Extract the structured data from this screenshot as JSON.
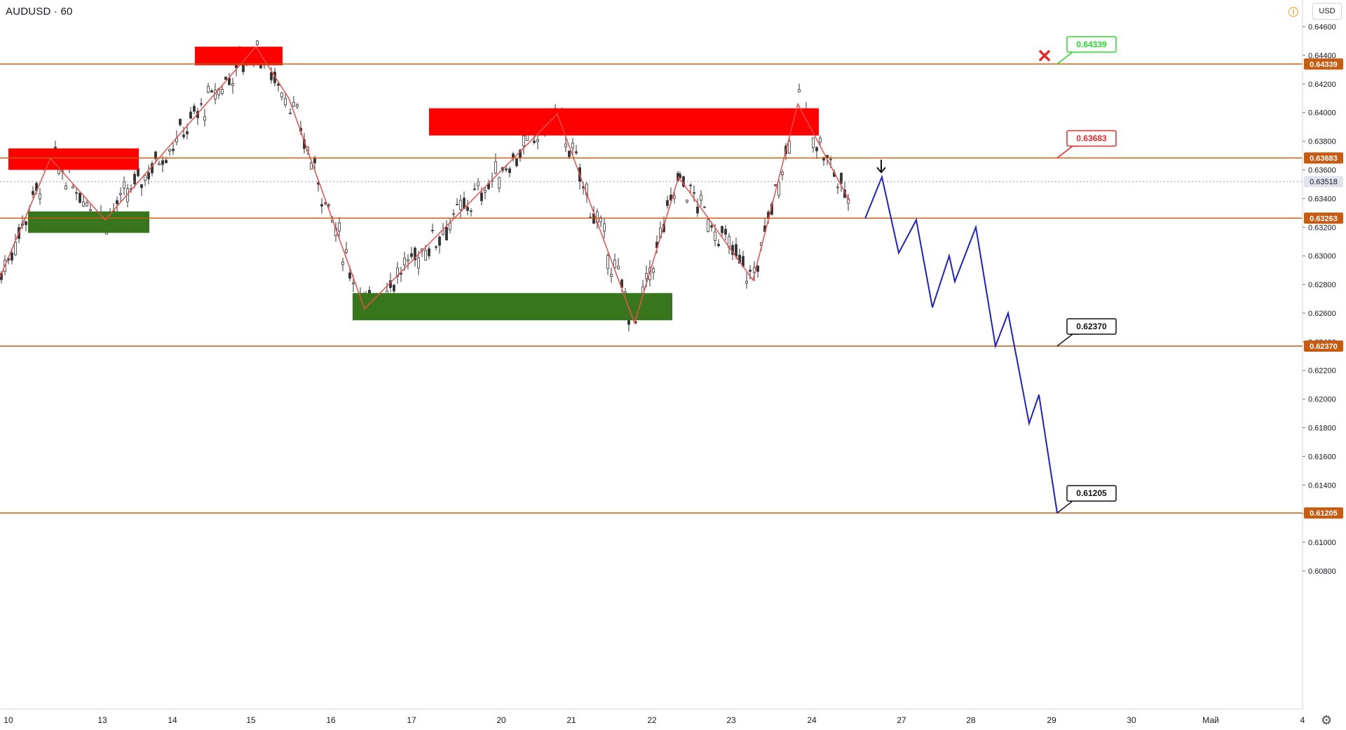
{
  "header": {
    "symbol": "AUDUSD · 60",
    "currency": "USD"
  },
  "colors": {
    "level_line": "#c65b12",
    "supply_zone": "#ff0000",
    "demand_zone": "#38761d",
    "zigzag": "#ef4d4d",
    "projection": "#1e1ed2",
    "candle": "#333333",
    "stop_label_border": "#e62a2a",
    "target_label_border": "#26d92a"
  },
  "price_axis": {
    "ticks": [
      "0.64600",
      "0.64400",
      "0.64200",
      "0.64000",
      "0.63800",
      "0.63600",
      "0.63400",
      "0.63200",
      "0.63000",
      "0.62800",
      "0.62600",
      "0.62400",
      "0.62200",
      "0.62000",
      "0.61800",
      "0.61600",
      "0.61400",
      "0.61200",
      "0.61000",
      "0.60800"
    ],
    "current_price": "0.63518"
  },
  "time_axis": {
    "ticks": [
      "10",
      "13",
      "14",
      "15",
      "16",
      "17",
      "20",
      "21",
      "22",
      "23",
      "24",
      "27",
      "28",
      "29",
      "30",
      "Май",
      "4"
    ]
  },
  "levels": [
    {
      "price": 0.64339,
      "label": "0.64339"
    },
    {
      "price": 0.63683,
      "label": "0.63683"
    },
    {
      "price": 0.63263,
      "label": "0.63263"
    },
    {
      "price": 0.6237,
      "label": "0.62370"
    },
    {
      "price": 0.61205,
      "label": "0.61205"
    }
  ],
  "callouts": [
    {
      "label": "0.64339",
      "style": "green"
    },
    {
      "label": "0.63683",
      "style": "red"
    },
    {
      "label": "0.62370",
      "style": "black"
    },
    {
      "label": "0.61205",
      "style": "black"
    }
  ],
  "markers": {
    "stop_icon": "x-mark-icon",
    "arrow_icon": "arrow-down-icon"
  },
  "chart_data": {
    "type": "candlestick",
    "instrument": "AUDUSD",
    "timeframe": "60",
    "ylim": [
      0.6072,
      0.6468
    ],
    "zones": [
      {
        "kind": "supply",
        "day_from": "10",
        "day_to": "13",
        "price_low": 0.636,
        "price_high": 0.6375
      },
      {
        "kind": "supply",
        "day_from": "14",
        "day_to": "15",
        "price_low": 0.6433,
        "price_high": 0.6446
      },
      {
        "kind": "supply",
        "day_from": "17",
        "day_to": "24",
        "price_low": 0.6384,
        "price_high": 0.6403
      },
      {
        "kind": "demand",
        "day_from": "10",
        "day_to": "13",
        "price_low": 0.6316,
        "price_high": 0.6331
      },
      {
        "kind": "demand",
        "day_from": "16",
        "day_to": "22",
        "price_low": 0.6255,
        "price_high": 0.6274
      }
    ],
    "zigzag_pivots": [
      0.6285,
      0.6368,
      0.6325,
      0.6446,
      0.641,
      0.6263,
      0.6399,
      0.6253,
      0.6355,
      0.6283,
      0.6406,
      0.6338
    ],
    "projection_pivots": [
      0.6326,
      0.6355,
      0.6302,
      0.6325,
      0.6264,
      0.63,
      0.6282,
      0.632,
      0.6237,
      0.626,
      0.6183,
      0.6203,
      0.61205
    ]
  }
}
